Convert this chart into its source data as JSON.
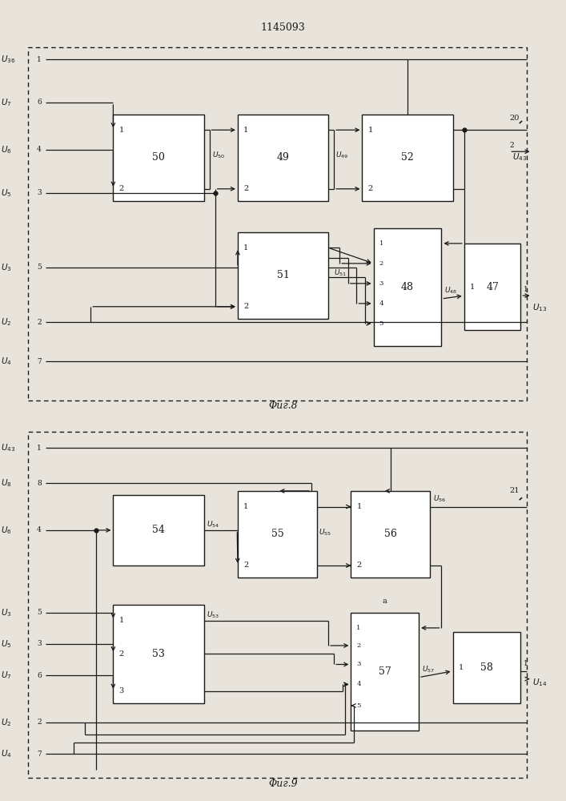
{
  "title": "1145093",
  "bg_color": "#e8e4dc",
  "line_color": "#1a1a1a",
  "text_color": "#1a1a1a",
  "fig8_caption": "Φиг.8",
  "fig9_caption": "Φиг.9"
}
